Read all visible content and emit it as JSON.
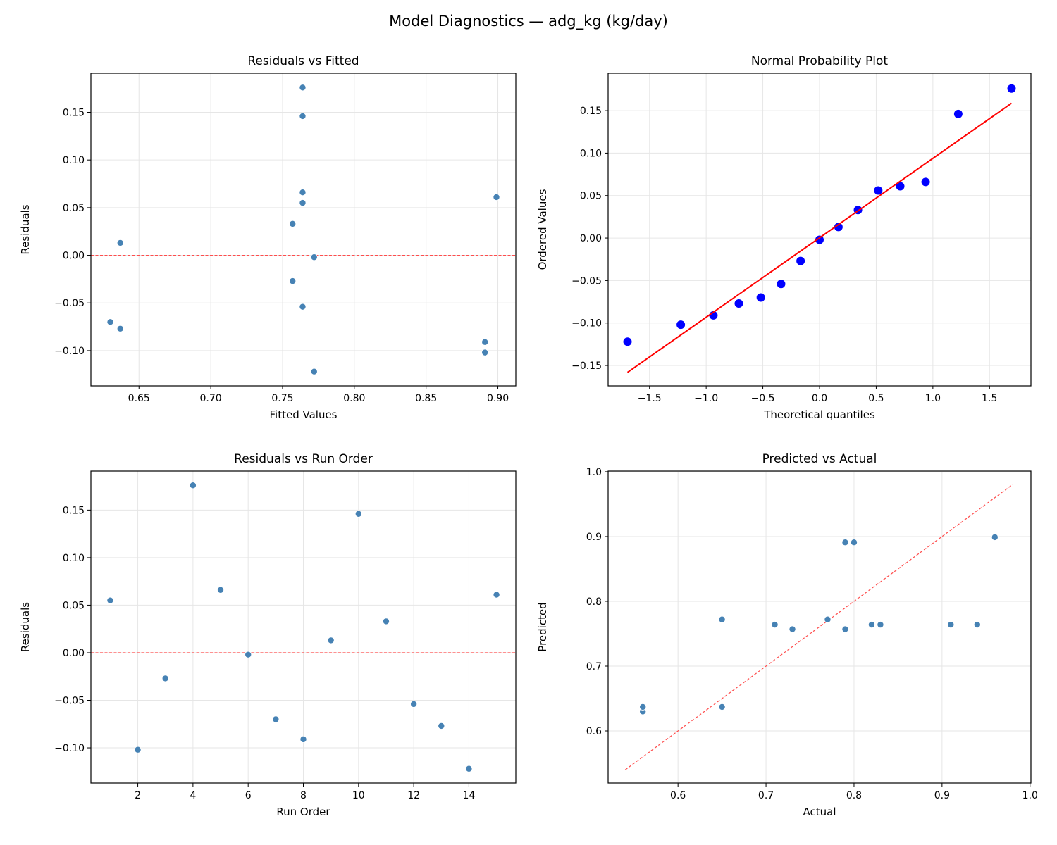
{
  "title": "Model Diagnostics — adg_kg (kg/day)",
  "colors": {
    "marker": "#4682b4",
    "qq_marker": "#0000ff",
    "fit_line": "#ff0000",
    "ref_line": "#ff4d4d",
    "grid": "#e6e6e6"
  },
  "chart_data": [
    {
      "type": "scatter",
      "title": "Residuals vs Fitted",
      "xlabel": "Fitted Values",
      "ylabel": "Residuals",
      "xlim": [
        0.6165,
        0.9125
      ],
      "ylim": [
        -0.137,
        0.191
      ],
      "xticks": [
        0.65,
        0.7,
        0.75,
        0.8,
        0.85,
        0.9
      ],
      "yticks": [
        -0.1,
        -0.05,
        0.0,
        0.05,
        0.1,
        0.15
      ],
      "tick_decimals": [
        2,
        2
      ],
      "grid": true,
      "reference_line": {
        "type": "horizontal",
        "y": 0,
        "style": "dashed"
      },
      "x": [
        0.764,
        0.891,
        0.757,
        0.764,
        0.764,
        0.772,
        0.63,
        0.891,
        0.637,
        0.764,
        0.757,
        0.764,
        0.637,
        0.772,
        0.899
      ],
      "y": [
        0.055,
        -0.102,
        -0.027,
        0.176,
        0.066,
        -0.002,
        -0.07,
        -0.091,
        0.013,
        0.146,
        0.033,
        -0.054,
        -0.077,
        -0.122,
        0.061
      ]
    },
    {
      "type": "scatter",
      "title": "Normal Probability Plot",
      "xlabel": "Theoretical quantiles",
      "ylabel": "Ordered Values",
      "xlim": [
        -1.865,
        1.865
      ],
      "ylim": [
        -0.174,
        0.194
      ],
      "xticks": [
        -1.5,
        -1.0,
        -0.5,
        0.0,
        0.5,
        1.0,
        1.5
      ],
      "yticks": [
        -0.15,
        -0.1,
        -0.05,
        0.0,
        0.05,
        0.1,
        0.15
      ],
      "tick_decimals": [
        1,
        2
      ],
      "grid": true,
      "fit_line": {
        "slope": 0.0935,
        "intercept": 0.0003
      },
      "x": [
        -1.694,
        -1.224,
        -0.936,
        -0.712,
        -0.518,
        -0.339,
        -0.167,
        0.0,
        0.167,
        0.339,
        0.518,
        0.712,
        0.936,
        1.224,
        1.694
      ],
      "y": [
        -0.122,
        -0.102,
        -0.091,
        -0.077,
        -0.07,
        -0.054,
        -0.027,
        -0.002,
        0.013,
        0.033,
        0.056,
        0.061,
        0.066,
        0.146,
        0.176
      ]
    },
    {
      "type": "scatter",
      "title": "Residuals vs Run Order",
      "xlabel": "Run Order",
      "ylabel": "Residuals",
      "xlim": [
        0.3,
        15.7
      ],
      "ylim": [
        -0.137,
        0.191
      ],
      "xticks": [
        2,
        4,
        6,
        8,
        10,
        12,
        14
      ],
      "yticks": [
        -0.1,
        -0.05,
        0.0,
        0.05,
        0.1,
        0.15
      ],
      "tick_decimals": [
        0,
        2
      ],
      "grid": true,
      "reference_line": {
        "type": "horizontal",
        "y": 0,
        "style": "dashed"
      },
      "x": [
        1,
        2,
        3,
        4,
        5,
        6,
        7,
        8,
        9,
        10,
        11,
        12,
        13,
        14,
        15
      ],
      "y": [
        0.055,
        -0.102,
        -0.027,
        0.176,
        0.066,
        -0.002,
        -0.07,
        -0.091,
        0.013,
        0.146,
        0.033,
        -0.054,
        -0.077,
        -0.122,
        0.061
      ]
    },
    {
      "type": "scatter",
      "title": "Predicted vs Actual",
      "xlabel": "Actual",
      "ylabel": "Predicted",
      "xlim": [
        0.5206,
        1.001
      ],
      "ylim": [
        0.5196,
        1.001
      ],
      "xticks": [
        0.6,
        0.7,
        0.8,
        0.9,
        1.0
      ],
      "yticks": [
        0.6,
        0.7,
        0.8,
        0.9,
        1.0
      ],
      "tick_decimals": [
        1,
        1
      ],
      "grid": true,
      "reference_line": {
        "type": "diagonal",
        "from": 0.54,
        "to": 0.98,
        "style": "dashed"
      },
      "x": [
        0.82,
        0.79,
        0.73,
        0.94,
        0.83,
        0.77,
        0.56,
        0.8,
        0.65,
        0.91,
        0.79,
        0.71,
        0.56,
        0.65,
        0.96
      ],
      "y": [
        0.764,
        0.891,
        0.757,
        0.764,
        0.764,
        0.772,
        0.63,
        0.891,
        0.637,
        0.764,
        0.757,
        0.764,
        0.637,
        0.772,
        0.899
      ]
    }
  ]
}
